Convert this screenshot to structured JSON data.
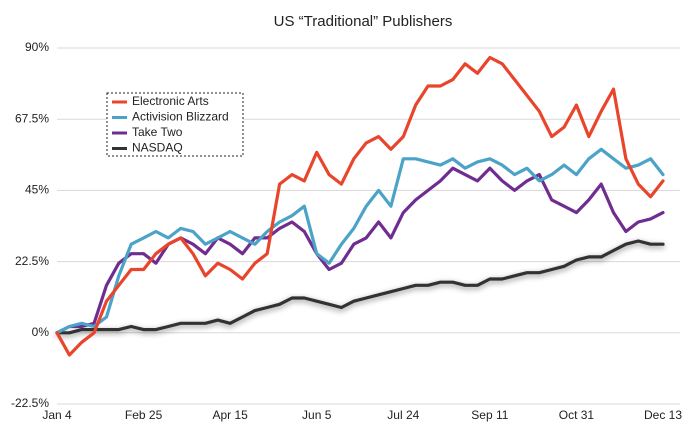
{
  "chart_data": {
    "type": "line",
    "title": "US “Traditional” Publishers",
    "categories": [
      "Jan 4",
      null,
      null,
      null,
      null,
      null,
      null,
      "Feb 25",
      null,
      null,
      null,
      null,
      null,
      null,
      "Apr 15",
      null,
      null,
      null,
      null,
      null,
      null,
      "Jun 5",
      null,
      null,
      null,
      null,
      null,
      null,
      "Jul 24",
      null,
      null,
      null,
      null,
      null,
      null,
      "Sep 11",
      null,
      null,
      null,
      null,
      null,
      null,
      "Oct 31",
      null,
      null,
      null,
      null,
      null,
      null,
      "Dec 13"
    ],
    "ylim": [
      -22.5,
      90
    ],
    "yticks": [
      {
        "value": -22.5,
        "label": "-22.5%"
      },
      {
        "value": 0,
        "label": "0%"
      },
      {
        "value": 22.5,
        "label": "22.5%"
      },
      {
        "value": 45,
        "label": "45%"
      },
      {
        "value": 67.5,
        "label": "67.5%"
      },
      {
        "value": 90,
        "label": "90%"
      }
    ],
    "grid": true,
    "legend": "upper left",
    "series": [
      {
        "name": "Electronic Arts",
        "color": "#e8452c",
        "values": [
          0,
          -7,
          -3,
          0,
          10,
          15,
          20,
          20,
          25,
          28,
          30,
          25,
          18,
          22,
          20,
          17,
          22,
          25,
          47,
          50,
          48,
          57,
          50,
          47,
          55,
          60,
          62,
          58,
          62,
          72,
          78,
          78,
          80,
          85,
          82,
          87,
          85,
          80,
          75,
          70,
          62,
          65,
          72,
          62,
          70,
          77,
          55,
          47,
          43,
          48
        ]
      },
      {
        "name": "Activision Blizzard",
        "color": "#4ba3c7",
        "values": [
          0,
          2,
          3,
          2,
          5,
          18,
          28,
          30,
          32,
          30,
          33,
          32,
          28,
          30,
          32,
          30,
          28,
          32,
          35,
          37,
          40,
          25,
          22,
          28,
          33,
          40,
          45,
          40,
          55,
          55,
          54,
          53,
          55,
          52,
          54,
          55,
          53,
          50,
          52,
          48,
          50,
          53,
          50,
          55,
          58,
          55,
          52,
          53,
          55,
          50
        ]
      },
      {
        "name": "Take Two",
        "color": "#6f2d91",
        "values": [
          0,
          2,
          2,
          3,
          15,
          22,
          25,
          25,
          22,
          28,
          30,
          28,
          25,
          30,
          28,
          25,
          30,
          30,
          33,
          35,
          32,
          25,
          20,
          22,
          28,
          30,
          35,
          30,
          38,
          42,
          45,
          48,
          52,
          50,
          48,
          52,
          48,
          45,
          48,
          50,
          42,
          40,
          38,
          42,
          47,
          38,
          32,
          35,
          36,
          38
        ]
      },
      {
        "name": "NASDAQ",
        "color": "#333333",
        "values": [
          0,
          0,
          1,
          1,
          1,
          1,
          2,
          1,
          1,
          2,
          3,
          3,
          3,
          4,
          3,
          5,
          7,
          8,
          9,
          11,
          11,
          10,
          9,
          8,
          10,
          11,
          12,
          13,
          14,
          15,
          15,
          16,
          16,
          15,
          15,
          17,
          17,
          18,
          19,
          19,
          20,
          21,
          23,
          24,
          24,
          26,
          28,
          29,
          28,
          28
        ]
      }
    ]
  }
}
